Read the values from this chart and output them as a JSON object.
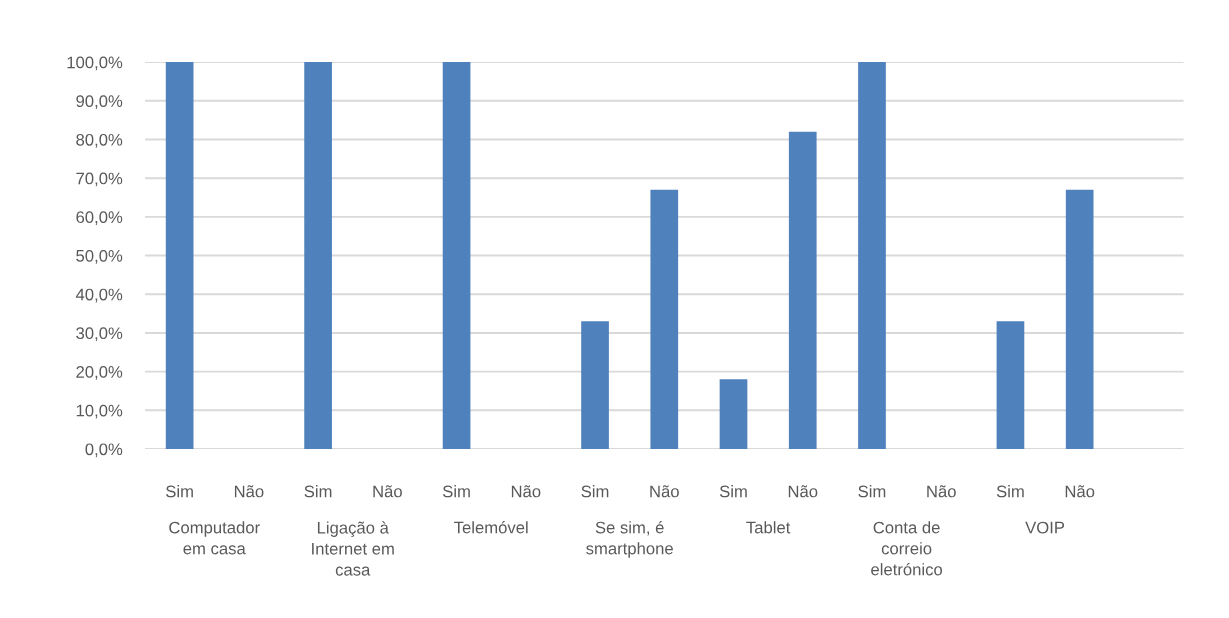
{
  "chart_data": {
    "type": "bar",
    "categories": [
      "Sim",
      "Não",
      "Sim",
      "Não",
      "Sim",
      "Não",
      "Sim",
      "Não",
      "Sim",
      "Não",
      "Sim",
      "Não",
      "Sim",
      "Não",
      null
    ],
    "values": [
      100,
      0,
      100,
      0,
      100,
      0,
      33,
      67,
      18,
      82,
      100,
      0,
      33,
      67,
      0
    ],
    "color": "#4f81bd",
    "ylim": [
      0,
      100
    ],
    "yticks": [
      {
        "value": 0,
        "label": "0,0%"
      },
      {
        "value": 10,
        "label": "10,0%"
      },
      {
        "value": 20,
        "label": "20,0%"
      },
      {
        "value": 30,
        "label": "30,0%"
      },
      {
        "value": 40,
        "label": "40,0%"
      },
      {
        "value": 50,
        "label": "50,0%"
      },
      {
        "value": 60,
        "label": "60,0%"
      },
      {
        "value": 70,
        "label": "70,0%"
      },
      {
        "value": 80,
        "label": "80,0%"
      },
      {
        "value": 90,
        "label": "90,0%"
      },
      {
        "value": 100,
        "label": "100,0%"
      }
    ],
    "annotations": [
      "Computador em casa",
      "Ligação à Internet em casa",
      "Telemóvel",
      "Se sim, é smartphone",
      "Tablet",
      "Conta de correio eletrónico",
      "VOIP"
    ],
    "grid": "y"
  }
}
